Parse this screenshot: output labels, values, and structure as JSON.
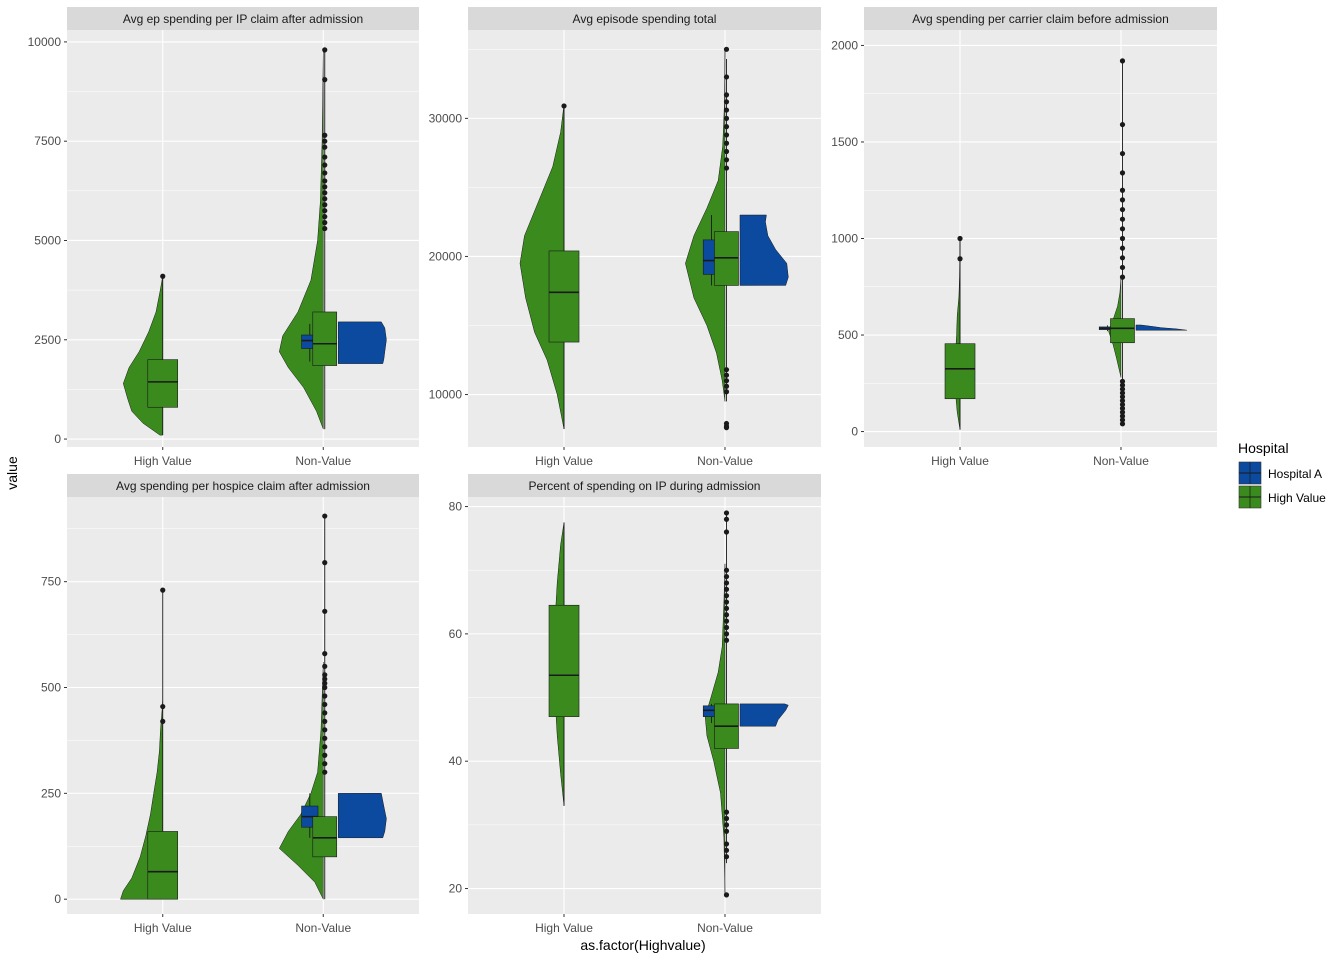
{
  "chart_data": {
    "type": "raincloud",
    "ylabel": "value",
    "xlabel": "as.factor(Highvalue)",
    "categories": [
      "High Value",
      "Non-Value"
    ],
    "legend": {
      "title": "Hospital",
      "placement": "right",
      "entries": [
        {
          "name": "Hospital A",
          "color": "#0B4A9E"
        },
        {
          "name": "High Value",
          "color": "#3A8A1E"
        }
      ]
    },
    "colors": {
      "hospital_a": "#0B4A9E",
      "high_value": "#3A8A1E",
      "panel_bg": "#EBEBEB",
      "strip_bg": "#D9D9D9"
    },
    "panels": [
      {
        "title": "Avg ep spending per IP claim after admission",
        "ylim": [
          -200,
          10300
        ],
        "yticks": [
          0,
          2500,
          5000,
          7500,
          10000
        ],
        "yticklabels": [
          "0",
          "2500",
          "5000",
          "7500",
          "10000"
        ],
        "high_value": {
          "violin": [
            [
              100,
              0.05
            ],
            [
              400,
              0.35
            ],
            [
              700,
              0.55
            ],
            [
              1000,
              0.62
            ],
            [
              1400,
              0.7
            ],
            [
              1800,
              0.6
            ],
            [
              2200,
              0.42
            ],
            [
              2700,
              0.25
            ],
            [
              3200,
              0.12
            ],
            [
              3700,
              0.05
            ],
            [
              4100,
              0.0
            ]
          ],
          "box": {
            "q1": 800,
            "median": 1440,
            "q3": 2000,
            "lo": 100,
            "hi": 4100
          },
          "outliers": [
            4100
          ]
        },
        "non_value_green": {
          "violin": [
            [
              250,
              0.0
            ],
            [
              700,
              0.12
            ],
            [
              1300,
              0.35
            ],
            [
              1800,
              0.62
            ],
            [
              2200,
              0.78
            ],
            [
              2600,
              0.72
            ],
            [
              3200,
              0.45
            ],
            [
              4000,
              0.22
            ],
            [
              5000,
              0.1
            ],
            [
              6000,
              0.05
            ],
            [
              7500,
              0.02
            ],
            [
              9800,
              0.0
            ]
          ],
          "box": {
            "q1": 1850,
            "median": 2400,
            "q3": 3200,
            "lo": 250,
            "hi": 9800
          },
          "outliers": [
            5300,
            5450,
            5600,
            5750,
            5900,
            6050,
            6200,
            6350,
            6500,
            6700,
            6900,
            7100,
            7350,
            7500,
            7650,
            9050,
            9800
          ]
        },
        "non_value_hospital_a": {
          "cloud": [
            [
              1900,
              0.88
            ],
            [
              2000,
              0.9
            ],
            [
              2200,
              0.92
            ],
            [
              2500,
              0.95
            ],
            [
              2800,
              0.92
            ],
            [
              2950,
              0.85
            ]
          ],
          "box": {
            "q1": 2280,
            "median": 2480,
            "q3": 2620,
            "lo": 1950,
            "hi": 2900
          }
        }
      },
      {
        "title": "Avg episode spending total",
        "ylim": [
          6200,
          36400
        ],
        "yticks": [
          10000,
          20000,
          30000
        ],
        "yticklabels": [
          "10000",
          "20000",
          "30000"
        ],
        "high_value": {
          "violin": [
            [
              7500,
              0.0
            ],
            [
              10000,
              0.12
            ],
            [
              12500,
              0.3
            ],
            [
              14500,
              0.52
            ],
            [
              17000,
              0.68
            ],
            [
              19500,
              0.78
            ],
            [
              21500,
              0.7
            ],
            [
              24000,
              0.45
            ],
            [
              26500,
              0.2
            ],
            [
              29000,
              0.06
            ],
            [
              31000,
              0.0
            ]
          ],
          "box": {
            "q1": 13800,
            "median": 17400,
            "q3": 20400,
            "lo": 7500,
            "hi": 30900
          },
          "outliers": [
            30900
          ]
        },
        "non_value_green": {
          "violin": [
            [
              9500,
              0.0
            ],
            [
              11000,
              0.05
            ],
            [
              13000,
              0.15
            ],
            [
              15000,
              0.32
            ],
            [
              17000,
              0.55
            ],
            [
              19500,
              0.7
            ],
            [
              21500,
              0.55
            ],
            [
              23500,
              0.32
            ],
            [
              25500,
              0.12
            ],
            [
              28000,
              0.04
            ],
            [
              31000,
              0.01
            ],
            [
              35000,
              0.0
            ]
          ],
          "box": {
            "q1": 17900,
            "median": 19900,
            "q3": 21800,
            "lo": 9500,
            "hi": 34300
          },
          "outliers": [
            7600,
            7700,
            7900,
            10200,
            10600,
            11000,
            11400,
            11800,
            26400,
            27000,
            27600,
            28200,
            28800,
            29400,
            30000,
            30600,
            31200,
            31700,
            33000,
            35000
          ]
        },
        "non_value_hospital_a": {
          "cloud": [
            [
              17900,
              0.9
            ],
            [
              18500,
              0.95
            ],
            [
              19500,
              0.92
            ],
            [
              20500,
              0.7
            ],
            [
              21500,
              0.55
            ],
            [
              22500,
              0.5
            ],
            [
              23000,
              0.52
            ]
          ],
          "box": {
            "q1": 18700,
            "median": 19700,
            "q3": 21200,
            "lo": 17900,
            "hi": 23000
          }
        }
      },
      {
        "title": "Avg spending per carrier claim before admission",
        "ylim": [
          -80,
          2080
        ],
        "yticks": [
          0,
          500,
          1000,
          1500,
          2000
        ],
        "yticklabels": [
          "0",
          "500",
          "1000",
          "1500",
          "2000"
        ],
        "high_value": {
          "violin": [
            [
              10,
              0.0
            ],
            [
              100,
              0.05
            ],
            [
              200,
              0.08
            ],
            [
              300,
              0.1
            ],
            [
              400,
              0.08
            ],
            [
              500,
              0.06
            ],
            [
              600,
              0.05
            ],
            [
              700,
              0.02
            ],
            [
              800,
              0.01
            ],
            [
              1000,
              0.0
            ]
          ],
          "box": {
            "q1": 170,
            "median": 325,
            "q3": 455,
            "lo": 10,
            "hi": 1000
          },
          "outliers": [
            895,
            1000
          ]
        },
        "non_value_green": {
          "violin": [
            [
              280,
              0.0
            ],
            [
              380,
              0.08
            ],
            [
              450,
              0.14
            ],
            [
              520,
              0.22
            ],
            [
              580,
              0.14
            ],
            [
              650,
              0.06
            ],
            [
              720,
              0.02
            ],
            [
              800,
              0.0
            ]
          ],
          "box": {
            "q1": 460,
            "median": 535,
            "q3": 585,
            "lo": 40,
            "hi": 1920
          },
          "outliers": [
            40,
            60,
            80,
            100,
            120,
            140,
            160,
            180,
            200,
            220,
            240,
            260,
            800,
            850,
            900,
            950,
            1000,
            1050,
            1100,
            1150,
            1200,
            1250,
            1340,
            1440,
            1590,
            1920
          ]
        },
        "non_value_hospital_a": {
          "cloud": [
            [
              525,
              1.0
            ],
            [
              532,
              0.8
            ],
            [
              538,
              0.5
            ],
            [
              545,
              0.3
            ],
            [
              552,
              0.1
            ]
          ],
          "box": {
            "q1": 528,
            "median": 535,
            "q3": 542,
            "lo": 520,
            "hi": 550
          }
        }
      },
      {
        "title": "Avg spending per hospice claim after admission",
        "ylim": [
          -35,
          950
        ],
        "yticks": [
          0,
          250,
          500,
          750
        ],
        "yticklabels": [
          "0",
          "250",
          "500",
          "750"
        ],
        "high_value": {
          "violin": [
            [
              0,
              0.75
            ],
            [
              20,
              0.7
            ],
            [
              50,
              0.55
            ],
            [
              100,
              0.4
            ],
            [
              150,
              0.3
            ],
            [
              200,
              0.22
            ],
            [
              250,
              0.16
            ],
            [
              300,
              0.1
            ],
            [
              350,
              0.06
            ],
            [
              400,
              0.04
            ],
            [
              450,
              0.01
            ],
            [
              470,
              0.0
            ]
          ],
          "box": {
            "q1": 0,
            "median": 65,
            "q3": 160,
            "lo": 0,
            "hi": 730
          },
          "outliers": [
            420,
            455,
            730
          ]
        },
        "non_value_green": {
          "violin": [
            [
              0,
              0.0
            ],
            [
              40,
              0.15
            ],
            [
              80,
              0.45
            ],
            [
              120,
              0.78
            ],
            [
              160,
              0.62
            ],
            [
              200,
              0.4
            ],
            [
              250,
              0.22
            ],
            [
              300,
              0.1
            ],
            [
              400,
              0.04
            ],
            [
              560,
              0.0
            ]
          ],
          "box": {
            "q1": 100,
            "median": 145,
            "q3": 195,
            "lo": 0,
            "hi": 905
          },
          "outliers": [
            300,
            320,
            340,
            360,
            380,
            400,
            420,
            440,
            460,
            480,
            500,
            510,
            520,
            530,
            550,
            580,
            680,
            795,
            905
          ]
        },
        "non_value_hospital_a": {
          "cloud": [
            [
              145,
              0.88
            ],
            [
              160,
              0.92
            ],
            [
              190,
              0.95
            ],
            [
              220,
              0.9
            ],
            [
              250,
              0.85
            ]
          ],
          "box": {
            "q1": 170,
            "median": 195,
            "q3": 220,
            "lo": 145,
            "hi": 250
          }
        }
      },
      {
        "title": "Percent of spending on IP during admission",
        "ylim": [
          16,
          81.5
        ],
        "yticks": [
          20,
          40,
          60,
          80
        ],
        "yticklabels": [
          "20",
          "40",
          "60",
          "80"
        ],
        "high_value": {
          "violin": [
            [
              33,
              0.0
            ],
            [
              38,
              0.06
            ],
            [
              44,
              0.12
            ],
            [
              50,
              0.16
            ],
            [
              56,
              0.18
            ],
            [
              62,
              0.16
            ],
            [
              68,
              0.12
            ],
            [
              74,
              0.06
            ],
            [
              77.5,
              0.0
            ]
          ],
          "box": {
            "q1": 47,
            "median": 53.5,
            "q3": 64.5,
            "lo": 33,
            "hi": 77.5
          },
          "outliers": []
        },
        "non_value_green": {
          "violin": [
            [
              19,
              0.0
            ],
            [
              28,
              0.02
            ],
            [
              35,
              0.08
            ],
            [
              40,
              0.2
            ],
            [
              44,
              0.32
            ],
            [
              47,
              0.35
            ],
            [
              50,
              0.25
            ],
            [
              54,
              0.12
            ],
            [
              58,
              0.05
            ],
            [
              65,
              0.02
            ],
            [
              71,
              0.0
            ]
          ],
          "box": {
            "q1": 42,
            "median": 45.5,
            "q3": 49,
            "lo": 24,
            "hi": 79
          },
          "outliers": [
            19,
            25,
            26,
            27,
            29,
            30,
            31,
            32,
            59,
            60,
            61,
            62,
            63,
            64,
            65,
            66,
            67,
            68,
            69,
            70,
            76,
            78,
            79
          ]
        },
        "non_value_hospital_a": {
          "cloud": [
            [
              45.5,
              0.7
            ],
            [
              46.5,
              0.75
            ],
            [
              48,
              0.9
            ],
            [
              48.8,
              0.95
            ],
            [
              49,
              0.88
            ]
          ],
          "box": {
            "q1": 47,
            "median": 48,
            "q3": 48.7,
            "lo": 46,
            "hi": 49
          }
        }
      }
    ]
  }
}
